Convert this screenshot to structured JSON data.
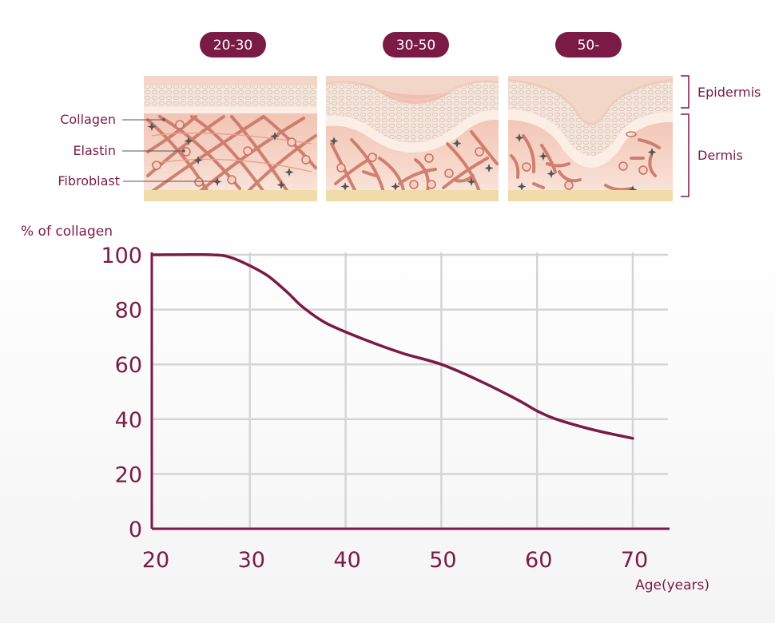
{
  "stages": [
    "20-30",
    "30-50",
    "50-"
  ],
  "layers": {
    "top": "Epidermis",
    "bottom": "Dermis"
  },
  "structures": [
    "Collagen",
    "Elastin",
    "Fibroblast"
  ],
  "colors": {
    "accent": "#7a1b45",
    "skin_light": "#f8ddd0",
    "skin_deep": "#efb5a3",
    "fiber": "#c9705f",
    "epidermis": "#f3e4d8",
    "base_layer": "#f0dcaa",
    "gridline": "#d5d5d5"
  },
  "chart_data": {
    "type": "line",
    "xlabel": "Age(years)",
    "ylabel": "% of collagen",
    "xlim": [
      20,
      72
    ],
    "ylim": [
      0,
      100
    ],
    "xticks": [
      20,
      30,
      40,
      50,
      60,
      70
    ],
    "yticks": [
      0,
      20,
      40,
      60,
      80,
      100
    ],
    "grid": true,
    "series": [
      {
        "color": "#7a1b45",
        "x": [
          20,
          26,
          28,
          30,
          32,
          34,
          35.5,
          38,
          42,
          46,
          50,
          54,
          58,
          60,
          62,
          66,
          70
        ],
        "y": [
          100,
          100,
          99,
          96,
          92,
          86,
          81,
          75,
          69,
          64,
          60,
          54,
          47,
          43,
          40,
          36,
          33
        ]
      }
    ]
  }
}
